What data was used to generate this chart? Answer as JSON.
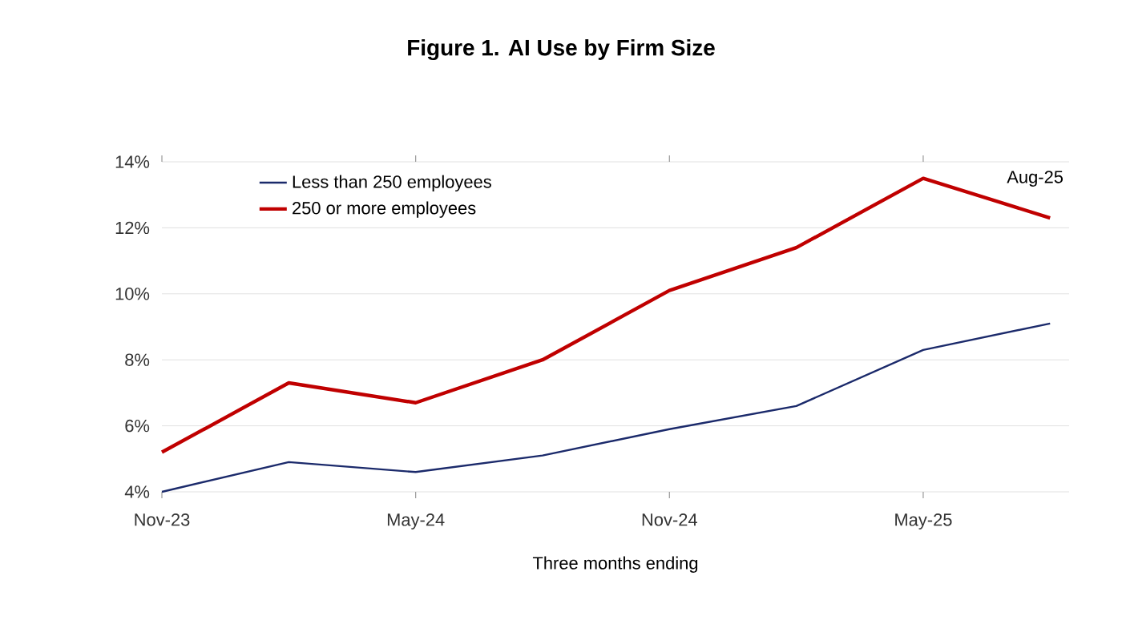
{
  "chart_data": {
    "type": "line",
    "title": "Figure 1. AI Use by Firm Size",
    "xlabel": "Three months ending",
    "categories": [
      "Nov-23",
      null,
      "May-24",
      null,
      "Nov-24",
      null,
      "May-25",
      null
    ],
    "ylim": [
      4,
      14
    ],
    "yticks": [
      {
        "value": 4,
        "label": "4%"
      },
      {
        "value": 6,
        "label": "6%"
      },
      {
        "value": 8,
        "label": "8%"
      },
      {
        "value": 10,
        "label": "10%"
      },
      {
        "value": 12,
        "label": "12%"
      },
      {
        "value": 14,
        "label": "14%"
      }
    ],
    "series": [
      {
        "name": "Less than 250 employees",
        "color": "#1b2a6b",
        "values": [
          4.0,
          4.9,
          4.6,
          5.1,
          5.9,
          6.6,
          8.3,
          9.1
        ]
      },
      {
        "name": "250 or more employees",
        "color": "#c00000",
        "values": [
          5.2,
          7.3,
          6.7,
          8.0,
          10.1,
          11.4,
          13.5,
          12.3
        ]
      }
    ],
    "annotations": [
      "Aug-25"
    ],
    "grid": "y",
    "legend": "top left",
    "marker": "none",
    "line_style": "solid"
  }
}
